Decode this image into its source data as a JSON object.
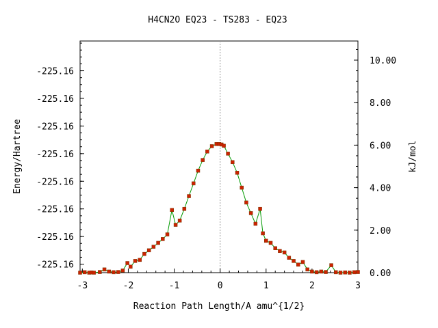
{
  "chart_data": {
    "type": "line",
    "title": "H4CN2O   EQ23 - TS283 - EQ23",
    "xlabel": "Reaction Path Length/A amu^{1/2}",
    "ylabel_left": "Energy/Hartree",
    "ylabel_right": "kJ/mol",
    "xlim": [
      -3.05,
      3.0
    ],
    "ylim": [
      0.0,
      10.9
    ],
    "x_ticks": [
      -3,
      -2,
      -1,
      0,
      1,
      2,
      3
    ],
    "x_tick_labels": [
      "-3",
      "-2",
      "-1",
      "0",
      "1",
      "2",
      "3"
    ],
    "left_ticks": [
      0.4,
      1.7,
      3.0,
      4.3,
      5.6,
      6.9,
      8.2,
      9.5
    ],
    "left_tick_labels": [
      "-225.16",
      "-225.16",
      "-225.16",
      "-225.16",
      "-225.16",
      "-225.16",
      "-225.16",
      "-225.16"
    ],
    "right_ticks": [
      0,
      2,
      4,
      6,
      8,
      10
    ],
    "right_tick_labels": [
      "0.00",
      "2.00",
      "4.00",
      "6.00",
      "8.00",
      "10.00"
    ],
    "ts_marker_x": 0.0,
    "grid": false,
    "line_color": "#009900",
    "marker_color": "#cc2200",
    "series": [
      {
        "x": [
          -3.05,
          -2.95,
          -2.85,
          -2.8,
          -2.75,
          -2.62,
          -2.52,
          -2.42,
          -2.32,
          -2.22,
          -2.12,
          -2.02,
          -1.95,
          -1.85,
          -1.75,
          -1.65,
          -1.55,
          -1.45,
          -1.35,
          -1.25,
          -1.15,
          -1.05,
          -0.97,
          -0.88,
          -0.78,
          -0.68,
          -0.58,
          -0.48,
          -0.38,
          -0.28,
          -0.18,
          -0.08,
          -0.02,
          0.03,
          0.08,
          0.17,
          0.27,
          0.37,
          0.47,
          0.57,
          0.67,
          0.77,
          0.87,
          0.93,
          1.0,
          1.1,
          1.2,
          1.3,
          1.4,
          1.5,
          1.6,
          1.7,
          1.8,
          1.9,
          2.0,
          2.1,
          2.2,
          2.3,
          2.42,
          2.52,
          2.62,
          2.72,
          2.82,
          2.92,
          3.0
        ],
        "y": [
          0.0,
          0.02,
          0.0,
          0.01,
          0.0,
          0.03,
          0.15,
          0.05,
          0.02,
          0.03,
          0.1,
          0.45,
          0.28,
          0.55,
          0.6,
          0.88,
          1.05,
          1.22,
          1.4,
          1.58,
          1.8,
          2.95,
          2.25,
          2.45,
          3.0,
          3.6,
          4.2,
          4.8,
          5.3,
          5.7,
          5.95,
          6.05,
          6.05,
          6.03,
          5.97,
          5.6,
          5.2,
          4.7,
          4.0,
          3.3,
          2.8,
          2.3,
          3.0,
          1.85,
          1.5,
          1.4,
          1.15,
          1.02,
          0.95,
          0.7,
          0.55,
          0.38,
          0.5,
          0.15,
          0.05,
          0.02,
          0.05,
          0.03,
          0.35,
          0.02,
          0.0,
          0.01,
          0.0,
          0.02,
          0.03
        ]
      }
    ]
  }
}
